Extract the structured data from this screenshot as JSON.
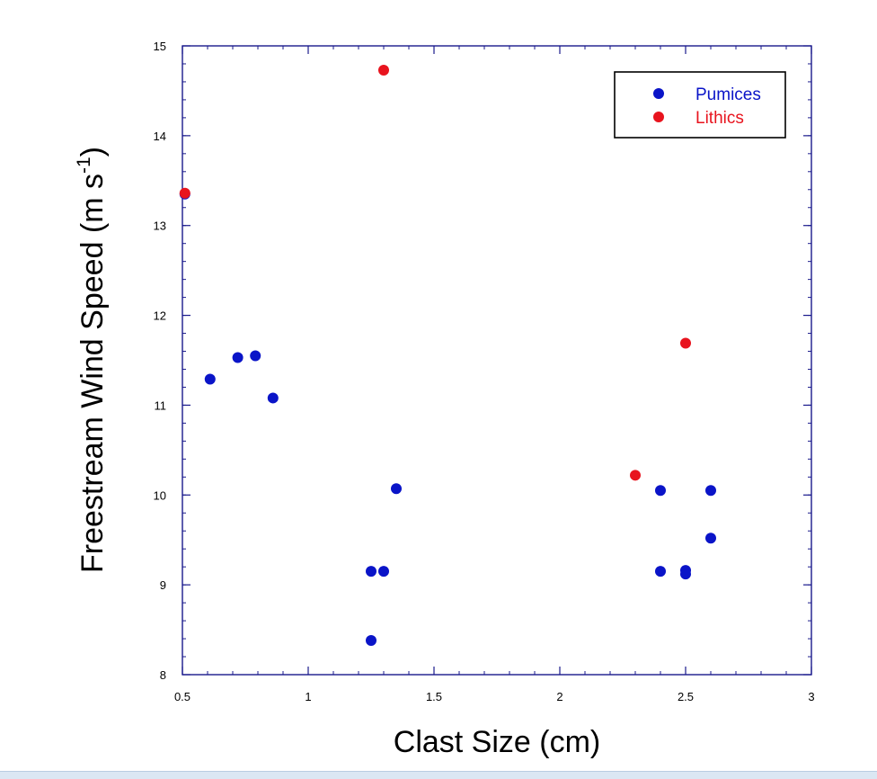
{
  "chart_data": {
    "type": "scatter",
    "title": "",
    "xlabel": "Clast Size (cm)",
    "ylabel_main": "Freestream Wind Speed (m s",
    "ylabel_sup": "-1",
    "ylabel_close": ")",
    "xlim": [
      0.5,
      3
    ],
    "ylim": [
      8,
      15
    ],
    "xticks": [
      0.5,
      1,
      1.5,
      2,
      2.5,
      3
    ],
    "xtick_labels": [
      "0.5",
      "1",
      "1.5",
      "2",
      "2.5",
      "3"
    ],
    "yticks": [
      8,
      9,
      10,
      11,
      12,
      13,
      14,
      15
    ],
    "ytick_labels": [
      "8",
      "9",
      "10",
      "11",
      "12",
      "13",
      "14",
      "15"
    ],
    "grid": false,
    "legend_position": "top-right",
    "series": [
      {
        "name": "Pumices",
        "color": "#0a14c8",
        "points": [
          [
            0.51,
            13.35
          ],
          [
            0.61,
            11.29
          ],
          [
            0.72,
            11.53
          ],
          [
            0.79,
            11.55
          ],
          [
            0.86,
            11.08
          ],
          [
            1.25,
            9.15
          ],
          [
            1.3,
            9.15
          ],
          [
            1.25,
            8.38
          ],
          [
            1.35,
            10.07
          ],
          [
            2.4,
            10.05
          ],
          [
            2.4,
            9.15
          ],
          [
            2.5,
            9.16
          ],
          [
            2.5,
            9.12
          ],
          [
            2.6,
            10.05
          ],
          [
            2.6,
            9.52
          ]
        ]
      },
      {
        "name": "Lithics",
        "color": "#e8141e",
        "points": [
          [
            0.51,
            13.36
          ],
          [
            1.3,
            14.73
          ],
          [
            2.3,
            10.22
          ],
          [
            2.5,
            11.69
          ]
        ]
      }
    ]
  }
}
